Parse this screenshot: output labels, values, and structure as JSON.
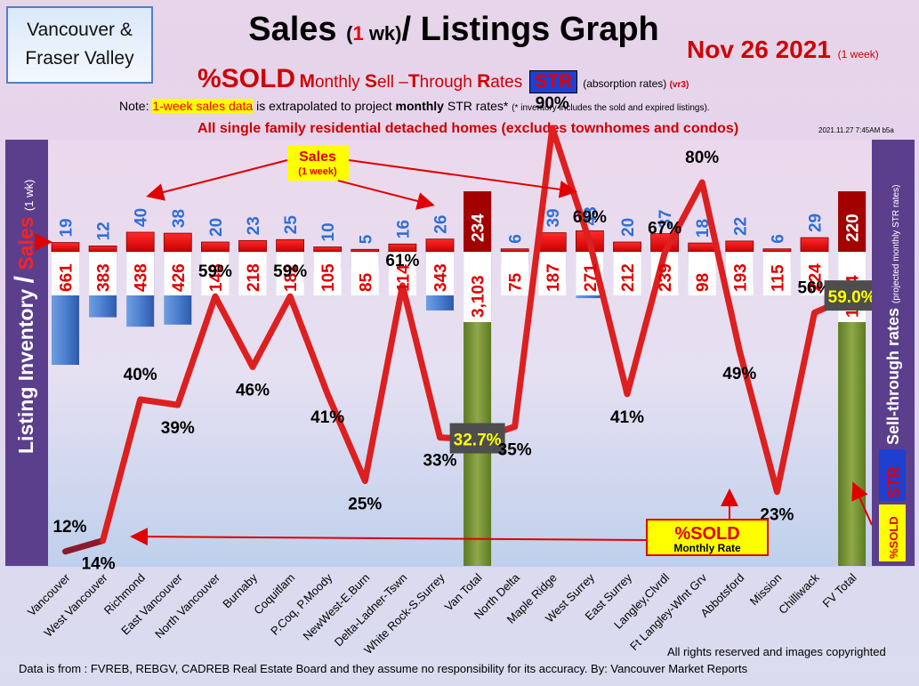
{
  "header": {
    "region_line1": "Vancouver &",
    "region_line2": "Fraser Valley",
    "title_a": "Sales ",
    "title_b": "(",
    "title_c": "1",
    "title_d": " wk)",
    "title_e": "/ Listings Graph",
    "date": "Nov 26  2021",
    "date_note": "(1 week)",
    "sub_pct": "%SOLD",
    "sub_m": "M",
    "sub_onthly": "onthly ",
    "sub_s": "S",
    "sub_ell": "ell –",
    "sub_t": "T",
    "sub_hrough": "hrough ",
    "sub_r": "R",
    "sub_ates": "ates",
    "str_label": "STR",
    "abs_text": "(absorption rates)",
    "abs_ver": "(vr3)",
    "note_a": "Note: ",
    "note_hl": "1-week sales data",
    "note_b": " is extrapolated to project ",
    "note_c": "monthly",
    "note_d": " STR rates* ",
    "note_e": "(* inventory includes the sold and expired listings).",
    "detached_text": "All single family residential detached homes (excludes townhomes and condos)",
    "timestamp": "2021.11.27 7:45AM b5a"
  },
  "footer": {
    "rights": "All rights reserved and  images copyrighted",
    "source": "Data is from : FVREB, REBGV, CADREB Real Estate Board and they assume no responsibility for its accuracy. By: Vancouver Market Reports"
  },
  "colors": {
    "sales_bar": "#ee0000",
    "inventory_bar": "#4a7ccc",
    "total_bar": "#7a9433",
    "str_line": "#dd1f1f",
    "vancouver_line": "#8b1a2a",
    "side_panel": "#5b3f8c",
    "highlight": "#ffff00",
    "str_badge": "#4d4d4d"
  },
  "chart_data": {
    "type": "bar",
    "title": "Sales (1 wk)/ Listings Graph",
    "left_axis_label_a": "Listing Inventory",
    "left_axis_label_slash": "/",
    "left_axis_label_b": "Sales",
    "left_axis_label_c": "(1 wk)",
    "right_axis_label_a": "Sell-through rates",
    "right_axis_label_b": "(projected monthly STR rates)",
    "right_axis_label_str": "STR",
    "right_axis_label_pct": "%SOLD",
    "categories": [
      "Vancouver",
      "West Vancouver",
      "Richmond",
      "East Vancouver",
      "North Vancouver",
      "Burnaby",
      "Coquitlam",
      "P.Coq, P.Moody",
      "NewWest-E.Burn",
      "Delta-Ladner-Tswn",
      "White Rock-S.Surrey",
      "Van Total",
      "North Delta",
      "Maple Ridge",
      "West Surrey",
      "East Surrey",
      "Langley,Clvrdl",
      "Ft Langley-Wlnt Grv",
      "Abbotsford",
      "Mission",
      "Chilliwack",
      "FV Total"
    ],
    "totals": [
      "Van Total",
      "FV Total"
    ],
    "series": [
      {
        "name": "Sales",
        "period": "(1 week)",
        "values": [
          19,
          12,
          40,
          38,
          20,
          23,
          25,
          10,
          5,
          16,
          26,
          234,
          6,
          39,
          43,
          20,
          37,
          18,
          22,
          6,
          29,
          220
        ]
      },
      {
        "name": "Listing Inventory",
        "values": [
          661,
          383,
          438,
          426,
          148,
          218,
          182,
          105,
          85,
          114,
          343,
          3103,
          75,
          187,
          271,
          212,
          239,
          98,
          193,
          115,
          224,
          1614
        ]
      },
      {
        "name": "%SOLD Monthly Rate",
        "values": [
          12,
          14,
          40,
          39,
          59,
          46,
          59,
          41,
          25,
          61,
          33,
          32.7,
          35,
          90,
          69,
          41,
          67,
          80,
          49,
          23,
          56,
          59.0
        ]
      }
    ],
    "inventory_labels": [
      "661",
      "383",
      "438",
      "426",
      "148",
      "218",
      "182",
      "105",
      "85",
      "114",
      "343",
      "3,103",
      "75",
      "187",
      "271",
      "212",
      "239",
      "98",
      "193",
      "115",
      "224",
      "1,614"
    ],
    "str_labels": [
      "12%",
      "14%",
      "40%",
      "39%",
      "59%",
      "46%",
      "59%",
      "41%",
      "25%",
      "61%",
      "33%",
      "32.7%",
      "35%",
      "90%",
      "69%",
      "41%",
      "67%",
      "80%",
      "49%",
      "23%",
      "56%",
      "59.0%"
    ],
    "sales_callout": {
      "text": "Sales",
      "sub": "(1 week)"
    },
    "sold_callout": {
      "text": "%SOLD",
      "sub": "Monthly Rate"
    },
    "legend": "none"
  }
}
